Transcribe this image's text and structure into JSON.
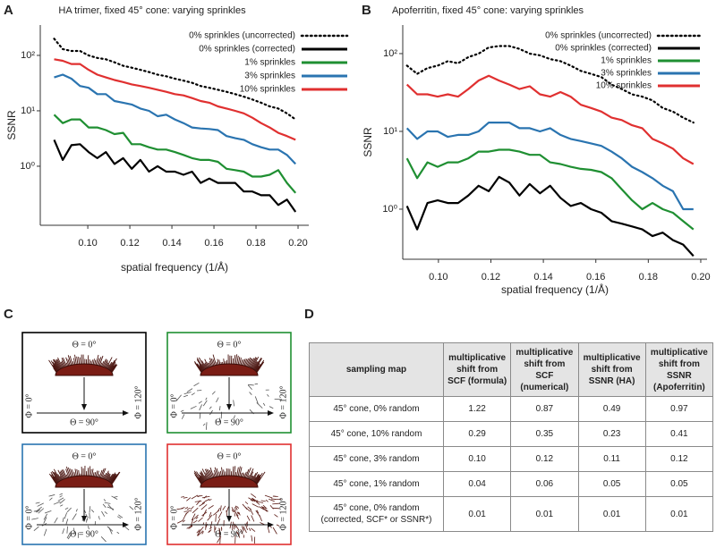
{
  "panel_labels": [
    "A",
    "B",
    "C",
    "D"
  ],
  "chart_data": [
    {
      "type": "line",
      "title": "HA trimer, fixed 45° cone: varying sprinkles",
      "xlabel": "spatial frequency (1/Å)",
      "ylabel": "SSNR",
      "yscale": "log",
      "legend": "upper right",
      "x": [
        0.084,
        0.0881,
        0.0922,
        0.0963,
        0.1004,
        0.1045,
        0.1086,
        0.1127,
        0.1168,
        0.1209,
        0.125,
        0.1291,
        0.1332,
        0.1373,
        0.1414,
        0.1455,
        0.1496,
        0.1537,
        0.1578,
        0.1619,
        0.166,
        0.1701,
        0.1742,
        0.1783,
        0.1824,
        0.1865,
        0.1906,
        0.1947,
        0.1988
      ],
      "xlim": [
        0.0774,
        0.2051
      ],
      "xticks": [
        {
          "value": 0.1,
          "label": "0.10"
        },
        0.12,
        0.14,
        0.16,
        0.18,
        {
          "value": 0.2,
          "label": "0.20"
        }
      ],
      "ylim": [
        0.086,
        353
      ],
      "yticks": [
        {
          "value": 1,
          "label": "10⁰"
        },
        {
          "value": 10,
          "label": "10¹"
        },
        {
          "value": 100,
          "label": "10²"
        }
      ],
      "series": [
        {
          "name": "0% sprinkles (uncorrected)",
          "color": "#000000",
          "line_style": "dotted",
          "values": [
            200,
            130,
            120,
            120,
            100,
            90,
            85,
            75,
            65,
            60,
            55,
            50,
            45,
            42,
            38,
            35,
            32,
            28,
            26,
            24,
            22,
            20,
            18,
            16,
            14,
            12,
            11,
            9,
            7
          ]
        },
        {
          "name": "0% sprinkles (corrected)",
          "color": "#000000",
          "line_style": "solid",
          "values": [
            3,
            1.3,
            2.4,
            2.5,
            1.8,
            1.4,
            1.8,
            1.1,
            1.4,
            0.9,
            1.3,
            0.8,
            1,
            0.8,
            0.8,
            0.7,
            0.8,
            0.5,
            0.6,
            0.5,
            0.5,
            0.5,
            0.35,
            0.35,
            0.3,
            0.3,
            0.2,
            0.25,
            0.15
          ]
        },
        {
          "name": "1% sprinkles",
          "color": "#1f8f32",
          "line_style": "solid",
          "values": [
            8.5,
            6,
            7,
            7,
            5,
            5,
            4.5,
            3.8,
            4,
            2.5,
            2.5,
            2.2,
            2,
            2,
            1.8,
            1.6,
            1.4,
            1.3,
            1.3,
            1.2,
            0.9,
            0.85,
            0.8,
            0.65,
            0.65,
            0.7,
            0.85,
            0.5,
            0.33
          ]
        },
        {
          "name": "3% sprinkles",
          "color": "#2a74b0",
          "line_style": "solid",
          "values": [
            40,
            45,
            38,
            28,
            26,
            20,
            20,
            15,
            14,
            13,
            11,
            10,
            8,
            8.5,
            7,
            6,
            5,
            4.8,
            4.7,
            4.5,
            3.5,
            3.2,
            3,
            2.5,
            2.2,
            2,
            2,
            1.6,
            1.1
          ]
        },
        {
          "name": "10% sprinkles",
          "color": "#e03030",
          "line_style": "solid",
          "values": [
            85,
            80,
            70,
            70,
            55,
            45,
            40,
            36,
            33,
            30,
            28,
            26,
            24,
            22,
            20,
            19,
            17,
            15,
            14,
            12,
            11,
            10,
            9,
            7.5,
            6,
            5,
            4,
            3.5,
            3
          ]
        }
      ]
    },
    {
      "type": "line",
      "title": "Apoferritin, fixed 45° cone: varying sprinkles",
      "xlabel": "spatial frequency (1/Å)",
      "ylabel": "SSNR",
      "yscale": "log",
      "legend": "upper right",
      "x": [
        0.088,
        0.0919,
        0.0958,
        0.0997,
        0.1036,
        0.1075,
        0.1114,
        0.1153,
        0.1192,
        0.1231,
        0.127,
        0.1309,
        0.1348,
        0.1387,
        0.1426,
        0.1465,
        0.1504,
        0.1543,
        0.1582,
        0.1621,
        0.166,
        0.1699,
        0.1738,
        0.1777,
        0.1816,
        0.1855,
        0.1894,
        0.1933,
        0.1972
      ],
      "xlim": [
        0.0864,
        0.2024
      ],
      "xticks": [
        {
          "value": 0.1,
          "label": "0.10"
        },
        0.12,
        0.14,
        0.16,
        0.18,
        {
          "value": 0.2,
          "label": "0.20"
        }
      ],
      "ylim": [
        0.227,
        233
      ],
      "yticks": [
        {
          "value": 1,
          "label": "10⁰"
        },
        {
          "value": 10,
          "label": "10¹"
        },
        {
          "value": 100,
          "label": "10²"
        }
      ],
      "series": [
        {
          "name": "0% sprinkles (uncorrected)",
          "color": "#000000",
          "line_style": "dotted",
          "values": [
            70,
            55,
            65,
            70,
            80,
            75,
            90,
            100,
            120,
            125,
            125,
            115,
            100,
            95,
            85,
            80,
            70,
            60,
            55,
            50,
            40,
            35,
            30,
            28,
            25,
            20,
            18,
            15,
            13
          ]
        },
        {
          "name": "0% sprinkles (corrected)",
          "color": "#000000",
          "line_style": "solid",
          "values": [
            1.1,
            0.55,
            1.2,
            1.3,
            1.2,
            1.2,
            1.5,
            2,
            1.7,
            2.6,
            2.2,
            1.5,
            2.1,
            1.6,
            2,
            1.4,
            1.1,
            1.2,
            1,
            0.9,
            0.7,
            0.65,
            0.6,
            0.55,
            0.45,
            0.5,
            0.4,
            0.35,
            0.25
          ]
        },
        {
          "name": "1% sprinkles",
          "color": "#1f8f32",
          "line_style": "solid",
          "values": [
            4.5,
            2.5,
            4,
            3.5,
            4,
            4,
            4.5,
            5.5,
            5.5,
            5.8,
            5.8,
            5.5,
            5,
            5,
            4,
            3.8,
            3.5,
            3.3,
            3.2,
            3,
            2.5,
            1.8,
            1.3,
            1,
            1.2,
            1,
            0.9,
            0.7,
            0.55
          ]
        },
        {
          "name": "3% sprinkles",
          "color": "#2a74b0",
          "line_style": "solid",
          "values": [
            11,
            8,
            10,
            10,
            8.5,
            9,
            9,
            10,
            13,
            13,
            13,
            11,
            11,
            10,
            11,
            9,
            8,
            7.5,
            7,
            6.5,
            5.5,
            4.5,
            3.5,
            3,
            2.5,
            2,
            1.7,
            1,
            1
          ]
        },
        {
          "name": "10% sprinkles",
          "color": "#e03030",
          "line_style": "solid",
          "values": [
            40,
            30,
            30,
            28,
            30,
            28,
            35,
            45,
            52,
            45,
            40,
            35,
            38,
            30,
            28,
            32,
            28,
            22,
            20,
            18,
            15,
            14,
            12,
            11,
            8,
            7,
            6,
            4.5,
            3.8
          ]
        }
      ]
    }
  ],
  "diagrams": [
    {
      "border_color": "#000000",
      "theta_top": "Θ = 0°",
      "theta_bottom": "Θ = 90°",
      "phi_left": "Φ = 0°",
      "phi_right": "Φ = 120°"
    },
    {
      "border_color": "#1f8f32",
      "theta_top": "Θ = 0°",
      "theta_bottom": "Θ = 90°",
      "phi_left": "Φ = 0°",
      "phi_right": "Φ = 120°"
    },
    {
      "border_color": "#2a74b0",
      "theta_top": "Θ = 0°",
      "theta_bottom": "Θ = 90°",
      "phi_left": "Φ = 0°",
      "phi_right": "Φ = 120°"
    },
    {
      "border_color": "#e03030",
      "theta_top": "Θ = 0°",
      "theta_bottom": "Θ = 90°",
      "phi_left": "Φ = 0°",
      "phi_right": "Φ = 120°"
    }
  ],
  "table": {
    "header": [
      "sampling map",
      "multiplicative shift from SCF (formula)",
      "multiplicative shift from SCF (numerical)",
      "multiplicative shift from SSNR (HA)",
      "multiplicative shift from SSNR (Apoferritin)"
    ],
    "rows": [
      [
        "45° cone, 0% random",
        "1.22",
        "0.87",
        "0.49",
        "0.97"
      ],
      [
        "45° cone, 10% random",
        "0.29",
        "0.35",
        "0.23",
        "0.41"
      ],
      [
        "45° cone, 3% random",
        "0.10",
        "0.12",
        "0.11",
        "0.12"
      ],
      [
        "45° cone, 1% random",
        "0.04",
        "0.06",
        "0.05",
        "0.05"
      ],
      [
        "45° cone, 0% random (corrected, SCF* or SSNR*)",
        "0.01",
        "0.01",
        "0.01",
        "0.01"
      ]
    ]
  }
}
